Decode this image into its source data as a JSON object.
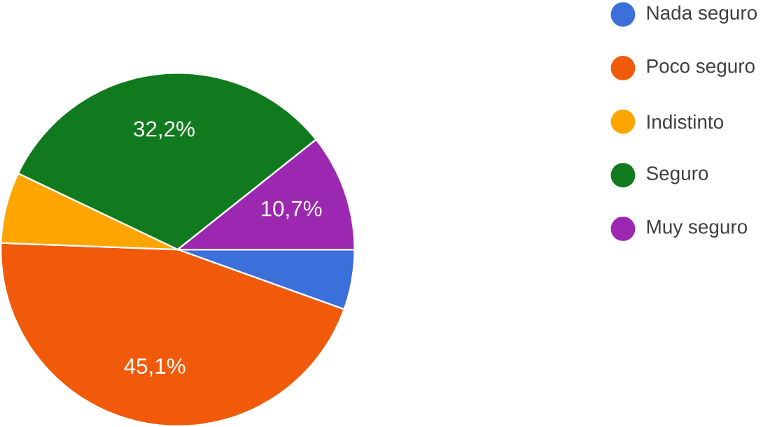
{
  "chart_data": {
    "type": "pie",
    "categories": [
      "Nada seguro",
      "Poco seguro",
      "Indistinto",
      "Seguro",
      "Muy seguro"
    ],
    "values": [
      5.5,
      45.1,
      6.5,
      32.2,
      10.7
    ],
    "value_labels": [
      null,
      "45,1%",
      null,
      "32,2%",
      "10,7%"
    ],
    "colors": [
      "#3b6fd9",
      "#f05a0a",
      "#ffa500",
      "#127a1e",
      "#9c27b0"
    ],
    "legend": "right"
  }
}
